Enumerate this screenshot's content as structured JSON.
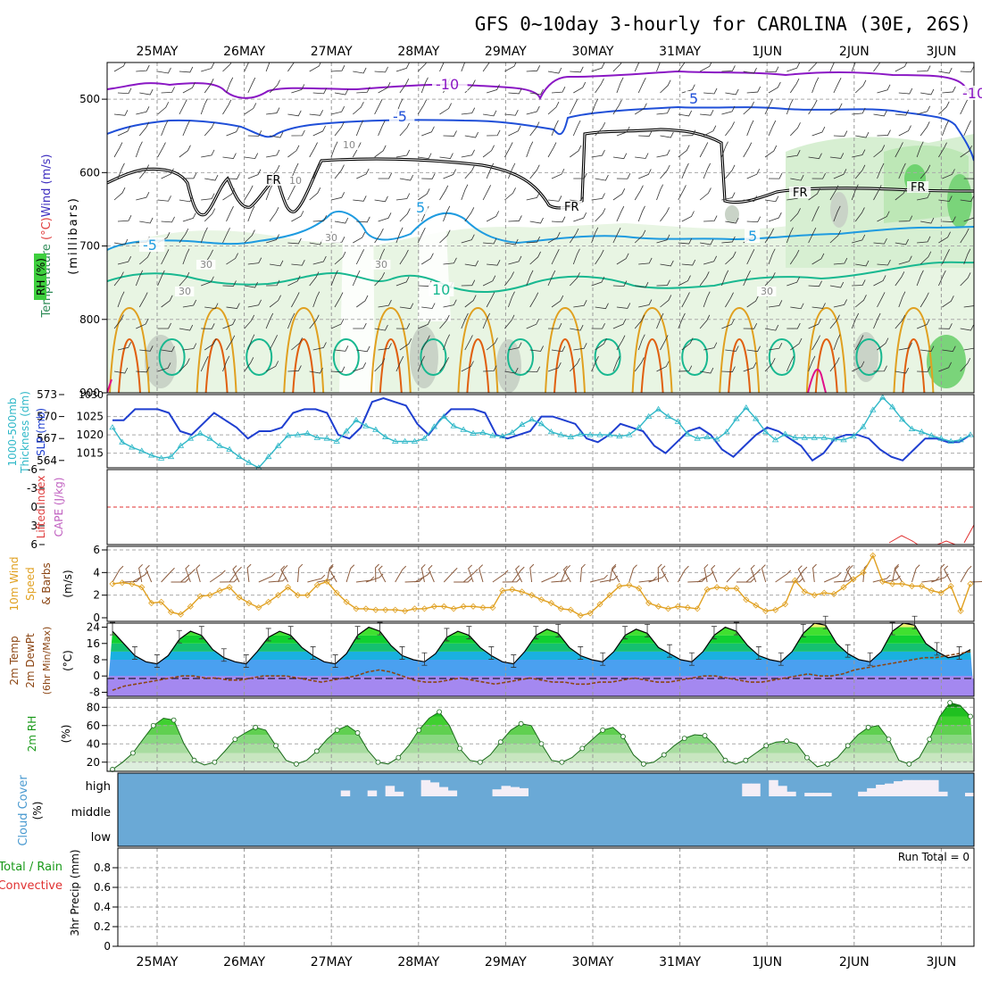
{
  "title": "GFS 0~10day 3-hourly for CAROLINA (30E, 26S)",
  "colors": {
    "purple": "#8a17c4",
    "blue": "#1f4fd8",
    "lightblue": "#1e9be0",
    "teal": "#18b890",
    "orange": "#e0a020",
    "darkorange": "#e06010",
    "magenta": "#e0108a",
    "cyan": "#30b8c8",
    "rhgreen": "#3ecf3e",
    "cloud": "#6aa9d6"
  },
  "chart_data": [
    {
      "id": "upper",
      "type": "heatmap",
      "title": "Temperature / Wind / RH",
      "ylabel_parts": [
        "Temperature ",
        "(°C)",
        "Wind (m/s)"
      ],
      "ylabel2": "(millibars)",
      "rh_label": "RH (%)",
      "categories": [
        "25MAY",
        "26MAY",
        "27MAY",
        "28MAY",
        "29MAY",
        "30MAY",
        "31MAY",
        "1JUN",
        "2JUN",
        "3JUN"
      ],
      "yticks": [
        "500",
        "600",
        "700",
        "800",
        "900"
      ],
      "ylim": [
        450,
        900
      ],
      "contour_labels": [
        "-10",
        "-5",
        "5",
        "-5",
        "5",
        "5",
        "-10",
        "10",
        "FR",
        "FR",
        "FR",
        "FR",
        "30",
        "30",
        "30",
        "30",
        "30",
        "10",
        "10"
      ]
    },
    {
      "id": "slp",
      "type": "line",
      "ylabel_a": "1000-500mb",
      "ylabel_b": "Thickness (dm)",
      "ylabel_c": "SLP (mb)",
      "left_ticks": [
        "573",
        "570",
        "567",
        "564"
      ],
      "right_ticks": [
        "1025",
        "1020",
        "1015"
      ],
      "series": [
        {
          "name": "SLP",
          "values": [
            1024,
            1024,
            1027,
            1027,
            1027,
            1026,
            1021,
            1020,
            1023,
            1026,
            1024,
            1022,
            1019,
            1021,
            1021,
            1022,
            1026,
            1027,
            1027,
            1026,
            1020,
            1019,
            1022,
            1029,
            1030,
            1029,
            1028,
            1023,
            1020,
            1024,
            1027,
            1027,
            1027,
            1026,
            1020,
            1019,
            1020,
            1021,
            1025,
            1025,
            1024,
            1023,
            1019,
            1018,
            1020,
            1023,
            1022,
            1021,
            1017,
            1015,
            1018,
            1021,
            1022,
            1020,
            1016,
            1014,
            1017,
            1020,
            1022,
            1021,
            1019,
            1017,
            1013,
            1015,
            1019,
            1020,
            1020,
            1019,
            1016,
            1014,
            1013,
            1016,
            1019,
            1019,
            1018,
            1018,
            1020
          ]
        },
        {
          "name": "Thickness",
          "values": [
            568.5,
            566.5,
            565.8,
            565.3,
            564.7,
            564.3,
            564.5,
            566,
            567,
            567.7,
            567,
            566,
            565.5,
            564.5,
            563.7,
            563,
            564.5,
            566,
            567.4,
            567.5,
            567.7,
            567.1,
            567,
            566.6,
            568,
            569.5,
            568.7,
            568.2,
            567.2,
            566.6,
            566.6,
            566.6,
            567,
            568.6,
            570,
            568.7,
            568.2,
            567.7,
            567.8,
            567.4,
            567.3,
            567.8,
            568.9,
            569.6,
            569,
            567.9,
            567.5,
            567.2,
            567.6,
            567.5,
            567.5,
            567.5,
            567.3,
            567.5,
            568.5,
            570,
            571,
            570,
            569.3,
            567.6,
            567,
            567.2,
            566.9,
            567.9,
            569.7,
            571.2,
            569.7,
            567.9,
            566.8,
            567.6,
            567.1,
            567.1,
            567.1,
            567.1,
            566.9,
            566.8,
            567.3,
            568.6,
            570.9,
            572.6,
            571.3,
            569.6,
            568.3,
            567.9,
            567.4,
            567,
            566.6,
            566.8,
            567.5
          ]
        }
      ]
    },
    {
      "id": "li",
      "type": "line",
      "ylabel_a": "Lifted Index",
      "ylabel_b": "CAPE (J/kg)",
      "yticks": [
        "-6",
        "-3",
        "0",
        "3",
        "6"
      ],
      "series": [
        {
          "name": "LI",
          "values": [
            5.8,
            5.2,
            5.9,
            5.2,
            5.8
          ]
        }
      ]
    },
    {
      "id": "wind",
      "type": "line",
      "ylabel_a": "10m Wind",
      "ylabel_b": "Speed",
      "ylabel_c": "& Barbs",
      "ylabel_d": "(m/s)",
      "yticks": [
        "6",
        "4",
        "2",
        "0"
      ],
      "ylim": [
        0,
        6
      ],
      "series": [
        {
          "name": "Speed",
          "values": [
            3,
            3.1,
            3,
            2.7,
            1.3,
            1.4,
            0.5,
            0.3,
            1,
            1.9,
            2,
            2.4,
            2.7,
            1.8,
            1.3,
            0.9,
            1.4,
            2,
            2.7,
            2,
            2,
            2.9,
            3.2,
            2.2,
            1.4,
            0.8,
            0.8,
            0.7,
            0.7,
            0.7,
            0.6,
            0.8,
            0.8,
            1,
            1,
            0.8,
            1,
            1,
            0.9,
            0.9,
            2.4,
            2.5,
            2.3,
            2,
            1.6,
            1.3,
            0.8,
            0.7,
            0.2,
            0.4,
            1.2,
            2,
            2.8,
            2.9,
            2.6,
            1.3,
            1,
            0.8,
            1,
            0.9,
            0.8,
            2.5,
            2.7,
            2.6,
            2.6,
            1.6,
            1.1,
            0.6,
            0.7,
            1.2,
            3.3,
            2.3,
            2,
            2.2,
            2.1,
            2.7,
            3.4,
            4,
            5.5,
            3.2,
            3,
            3,
            2.8,
            2.8,
            2.4,
            2.2,
            2.8,
            0.6,
            3
          ]
        }
      ]
    },
    {
      "id": "temp",
      "type": "area",
      "ylabel_a": "2m Temp",
      "ylabel_b": "2m DewPt",
      "ylabel_c": "(6hr Min/Max)",
      "ylabel_d": "(°C)",
      "yticks": [
        "24",
        "16",
        "8",
        "0",
        "-8"
      ],
      "ylim": [
        -10,
        26
      ],
      "series": [
        {
          "name": "Temp",
          "values": [
            22,
            16,
            10,
            7,
            6,
            10,
            18,
            22,
            20,
            13,
            9,
            7,
            6,
            12,
            19,
            22,
            20,
            14,
            10,
            7,
            6,
            11,
            20,
            24,
            22,
            15,
            10,
            8,
            7,
            11,
            19,
            22,
            20,
            14,
            10,
            7,
            6,
            12,
            20,
            23,
            21,
            14,
            10,
            8,
            7,
            12,
            20,
            23,
            21,
            14,
            11,
            8,
            7,
            12,
            20,
            24,
            22,
            15,
            10,
            8,
            7,
            12,
            21,
            26,
            25,
            16,
            11,
            8,
            7,
            12,
            22,
            26,
            25,
            16,
            12,
            9,
            10,
            13
          ]
        },
        {
          "name": "DewPt",
          "values": [
            -7,
            -5,
            -4,
            -3,
            -2,
            -1,
            0,
            0,
            -1,
            -1,
            -2,
            -2,
            -1,
            0,
            0,
            0,
            -1,
            -2,
            -3,
            -2,
            -1,
            0,
            2,
            3,
            2,
            0,
            -2,
            -3,
            -3,
            -2,
            -1,
            -2,
            -3,
            -4,
            -3,
            -2,
            -1,
            -2,
            -3,
            -3,
            -4,
            -4,
            -3,
            -3,
            -2,
            -1,
            -2,
            -3,
            -3,
            -2,
            -1,
            0,
            0,
            -1,
            -2,
            -3,
            -3,
            -2,
            -1,
            0,
            1,
            0,
            0,
            1,
            3,
            4,
            5,
            6,
            7,
            8,
            9,
            9,
            10,
            11,
            12
          ]
        }
      ]
    },
    {
      "id": "rh",
      "type": "area",
      "ylabel_a": "2m RH",
      "ylabel_b": "(%)",
      "yticks": [
        "80",
        "60",
        "40",
        "20"
      ],
      "ylim": [
        10,
        90
      ],
      "series": [
        {
          "name": "RH",
          "values": [
            12,
            20,
            30,
            45,
            60,
            68,
            66,
            40,
            22,
            17,
            20,
            32,
            45,
            52,
            58,
            55,
            38,
            22,
            18,
            22,
            32,
            45,
            55,
            60,
            52,
            33,
            20,
            18,
            25,
            38,
            55,
            68,
            75,
            60,
            35,
            22,
            20,
            28,
            42,
            55,
            62,
            60,
            40,
            22,
            20,
            25,
            35,
            45,
            55,
            58,
            48,
            28,
            18,
            20,
            28,
            38,
            46,
            50,
            49,
            38,
            22,
            18,
            22,
            30,
            38,
            42,
            43,
            40,
            25,
            15,
            18,
            25,
            38,
            50,
            58,
            60,
            45,
            22,
            18,
            25,
            45,
            70,
            85,
            82,
            70
          ]
        }
      ]
    },
    {
      "id": "cloud",
      "type": "bar",
      "ylabel_a": "Cloud Cover",
      "ylabel_b": "(%)",
      "yticks": [
        "high",
        "middle",
        "low"
      ],
      "series": [
        {
          "name": "High",
          "values": [
            0,
            0,
            0,
            0,
            0,
            0,
            0,
            0,
            0,
            0,
            0,
            0,
            0,
            0,
            0,
            0,
            0,
            0,
            0,
            0,
            0,
            0,
            0,
            0,
            0,
            25,
            0,
            0,
            25,
            0,
            45,
            20,
            0,
            0,
            70,
            60,
            40,
            25,
            0,
            0,
            0,
            0,
            30,
            45,
            40,
            35,
            0,
            0,
            0,
            0,
            0,
            0,
            0,
            0,
            0,
            0,
            0,
            0,
            0,
            0,
            0,
            0,
            0,
            0,
            0,
            0,
            0,
            0,
            0,
            0,
            55,
            55,
            0,
            70,
            45,
            20,
            0,
            15,
            15,
            15,
            0,
            0,
            0,
            20,
            35,
            50,
            55,
            65,
            70,
            70,
            70,
            70,
            20,
            0,
            0,
            15
          ]
        }
      ]
    },
    {
      "id": "precip",
      "type": "bar",
      "ylabel_a": "Total / Rain",
      "ylabel_b": "Convective",
      "ylabel_c": "3hr Precip (mm)",
      "yticks": [
        "0.8",
        "0.6",
        "0.4",
        "0.2",
        "0"
      ],
      "ylim": [
        0,
        1
      ],
      "run_total": "Run Total = 0",
      "series": [
        {
          "name": "Precip",
          "values": []
        }
      ]
    }
  ]
}
